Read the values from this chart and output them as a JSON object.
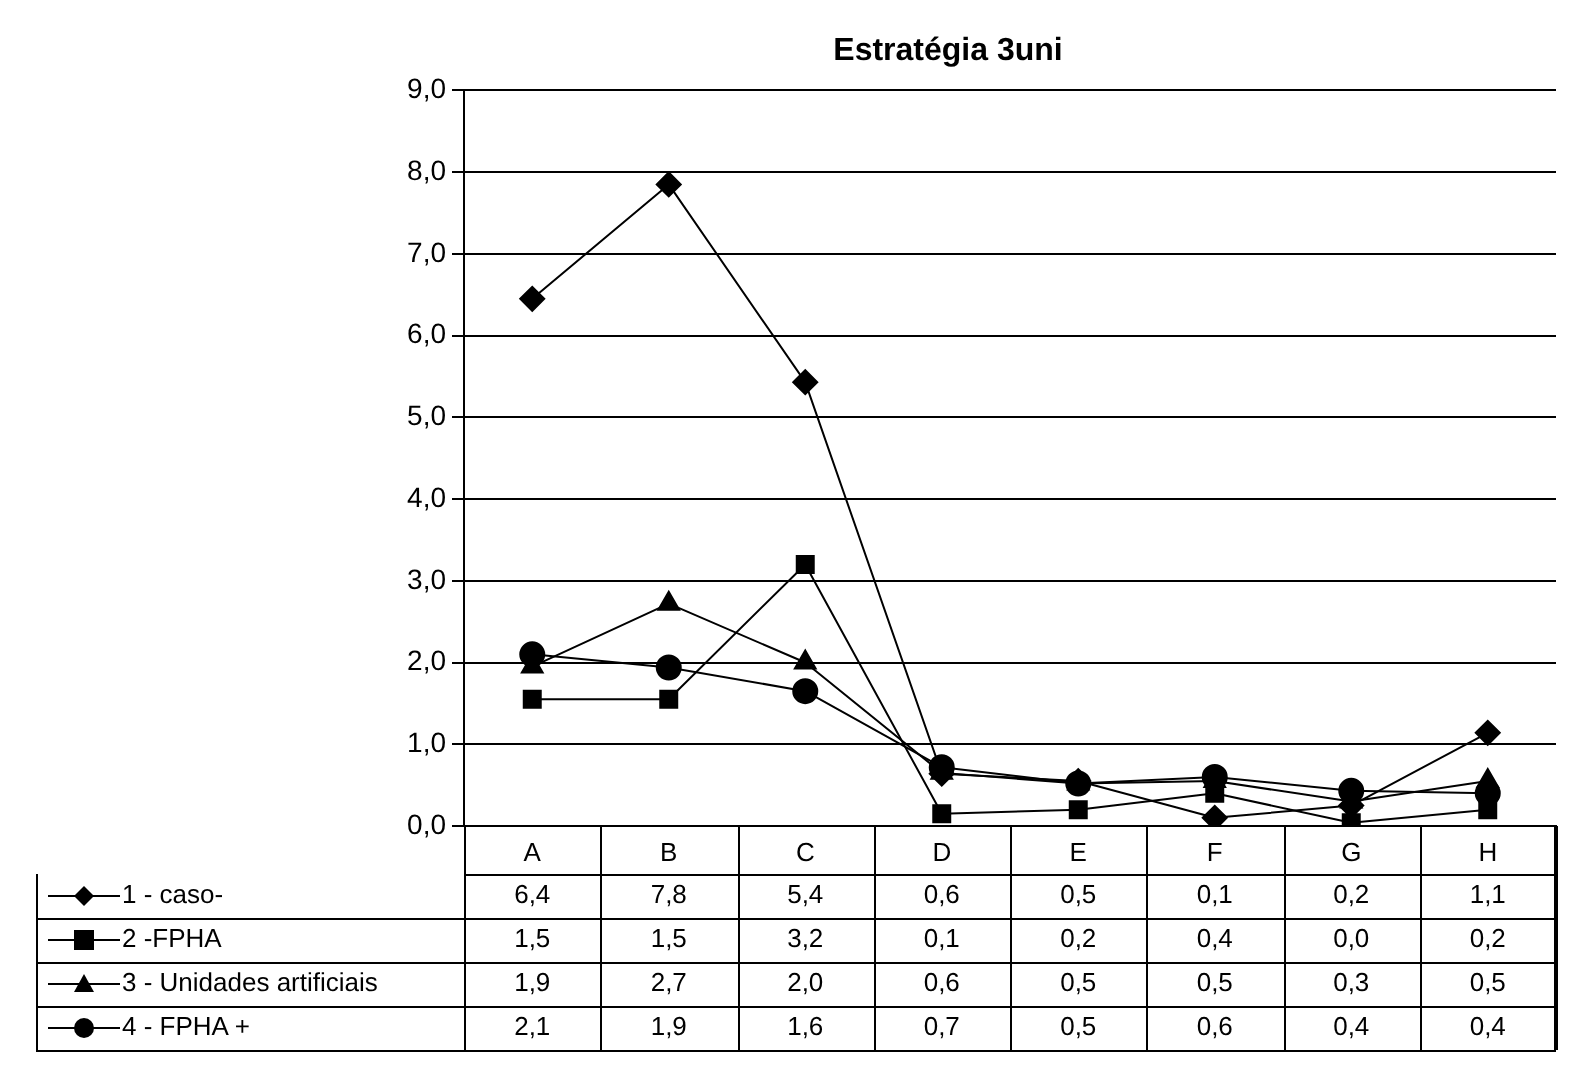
{
  "chart_data": {
    "type": "line",
    "title": "Estratégia 3uni",
    "categories": [
      "A",
      "B",
      "C",
      "D",
      "E",
      "F",
      "G",
      "H"
    ],
    "series": [
      {
        "name": "1 - caso-",
        "color": "#000000",
        "marker": "diamond",
        "values": [
          6.45,
          7.85,
          5.43,
          0.64,
          0.55,
          0.1,
          0.25,
          1.14
        ],
        "value_labels": [
          "6,4",
          "7,8",
          "5,4",
          "0,6",
          "0,5",
          "0,1",
          "0,2",
          "1,1"
        ]
      },
      {
        "name": "2 -FPHA",
        "color": "#000000",
        "marker": "square",
        "values": [
          1.55,
          1.55,
          3.2,
          0.15,
          0.2,
          0.4,
          0.04,
          0.2
        ],
        "value_labels": [
          "1,5",
          "1,5",
          "3,2",
          "0,1",
          "0,2",
          "0,4",
          "0,0",
          "0,2"
        ]
      },
      {
        "name": "3 - Unidades artificiais",
        "color": "#000000",
        "marker": "triangle",
        "values": [
          1.95,
          2.72,
          2.0,
          0.65,
          0.52,
          0.55,
          0.3,
          0.55
        ],
        "value_labels": [
          "1,9",
          "2,7",
          "2,0",
          "0,6",
          "0,5",
          "0,5",
          "0,3",
          "0,5"
        ]
      },
      {
        "name": "4 - FPHA +",
        "color": "#000000",
        "marker": "circle",
        "values": [
          2.1,
          1.94,
          1.65,
          0.72,
          0.52,
          0.6,
          0.43,
          0.4
        ],
        "value_labels": [
          "2,1",
          "1,9",
          "1,6",
          "0,7",
          "0,5",
          "0,6",
          "0,4",
          "0,4"
        ]
      }
    ],
    "ylim": [
      0,
      9
    ],
    "yticks": [
      {
        "value": 0,
        "label": "0,0"
      },
      {
        "value": 1,
        "label": "1,0"
      },
      {
        "value": 2,
        "label": "2,0"
      },
      {
        "value": 3,
        "label": "3,0"
      },
      {
        "value": 4,
        "label": "4,0"
      },
      {
        "value": 5,
        "label": "5,0"
      },
      {
        "value": 6,
        "label": "6,0"
      },
      {
        "value": 7,
        "label": "7,0"
      },
      {
        "value": 8,
        "label": "8,0"
      },
      {
        "value": 9,
        "label": "9,0"
      }
    ],
    "grid": "y",
    "legend": "bottom"
  }
}
